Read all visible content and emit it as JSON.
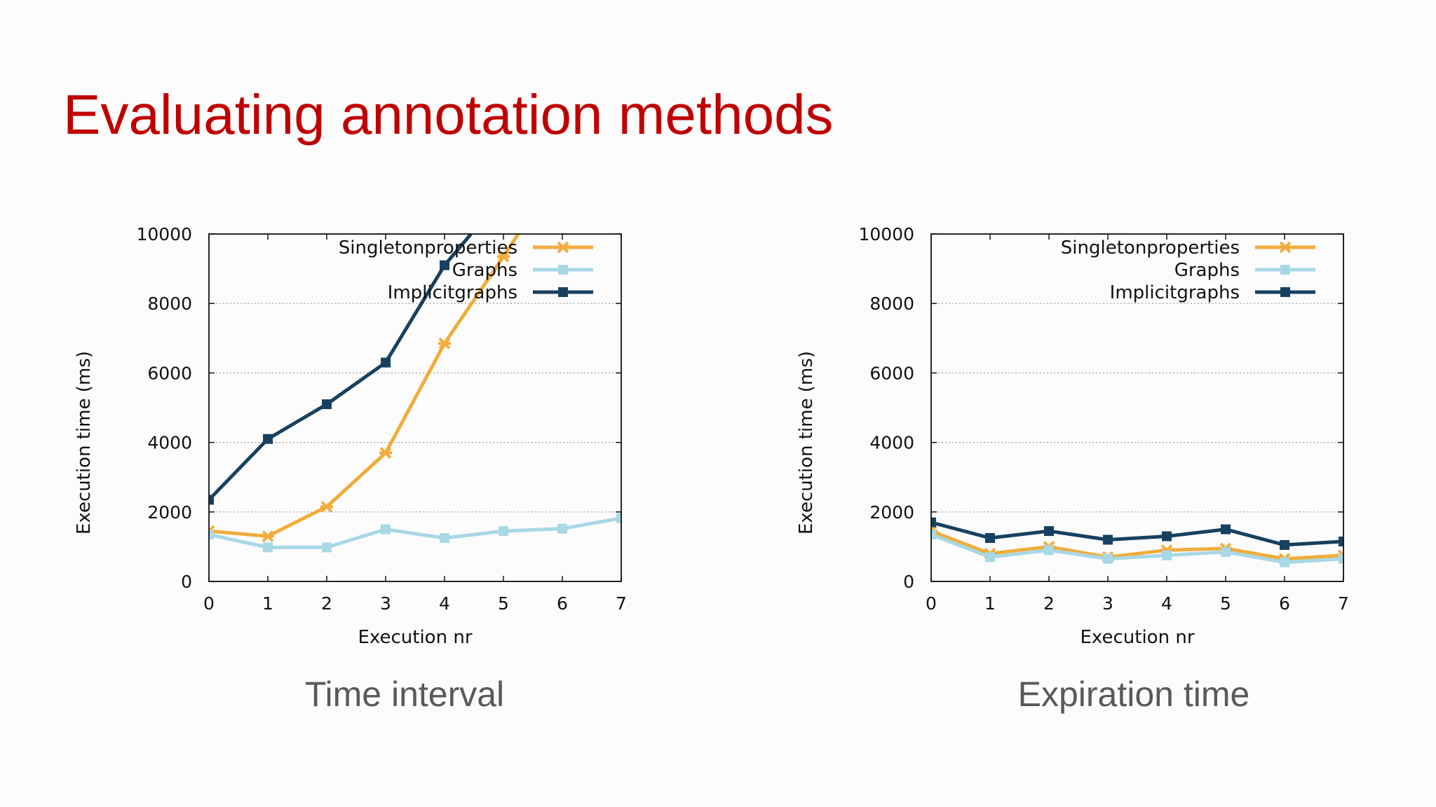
{
  "slide": {
    "title": "Evaluating annotation methods"
  },
  "chart_data": [
    {
      "type": "line",
      "caption": "Time interval",
      "xlabel": "Execution nr",
      "ylabel": "Execution time (ms)",
      "xlim": [
        0,
        7
      ],
      "ylim": [
        0,
        10000
      ],
      "xticks": [
        "0",
        "1",
        "2",
        "3",
        "4",
        "5",
        "6",
        "7"
      ],
      "yticks": [
        "0",
        "2000",
        "4000",
        "6000",
        "8000",
        "10000"
      ],
      "grid": "horizontal dotted",
      "legend_position": "top-right",
      "series": [
        {
          "name": "Singletonproperties",
          "color": "#f0ad3c",
          "marker": "star",
          "x": [
            0,
            1,
            2,
            3,
            4,
            5,
            5.25
          ],
          "y": [
            1450,
            1300,
            2150,
            3700,
            6850,
            9350,
            10000
          ]
        },
        {
          "name": "Graphs",
          "color": "#a8d8e6",
          "marker": "square",
          "x": [
            0,
            1,
            2,
            3,
            4,
            5,
            6,
            7
          ],
          "y": [
            1350,
            980,
            980,
            1500,
            1250,
            1450,
            1520,
            1820
          ]
        },
        {
          "name": "Implicitgraphs",
          "color": "#17415f",
          "marker": "square",
          "x": [
            0,
            1,
            2,
            3,
            4,
            4.45
          ],
          "y": [
            2350,
            4100,
            5100,
            6300,
            9100,
            10000
          ]
        }
      ]
    },
    {
      "type": "line",
      "caption": "Expiration time",
      "xlabel": "Execution nr",
      "ylabel": "Execution time (ms)",
      "xlim": [
        0,
        7
      ],
      "ylim": [
        0,
        10000
      ],
      "xticks": [
        "0",
        "1",
        "2",
        "3",
        "4",
        "5",
        "6",
        "7"
      ],
      "yticks": [
        "0",
        "2000",
        "4000",
        "6000",
        "8000",
        "10000"
      ],
      "grid": "horizontal dotted",
      "legend_position": "top-right",
      "series": [
        {
          "name": "Singletonproperties",
          "color": "#f0ad3c",
          "marker": "star",
          "x": [
            0,
            1,
            2,
            3,
            4,
            5,
            6,
            7
          ],
          "y": [
            1450,
            800,
            1000,
            700,
            900,
            950,
            650,
            750
          ]
        },
        {
          "name": "Graphs",
          "color": "#a8d8e6",
          "marker": "square",
          "x": [
            0,
            1,
            2,
            3,
            4,
            5,
            6,
            7
          ],
          "y": [
            1350,
            700,
            900,
            650,
            750,
            850,
            550,
            650
          ]
        },
        {
          "name": "Implicitgraphs",
          "color": "#17415f",
          "marker": "square",
          "x": [
            0,
            1,
            2,
            3,
            4,
            5,
            6,
            7
          ],
          "y": [
            1700,
            1250,
            1450,
            1200,
            1300,
            1500,
            1050,
            1150
          ]
        }
      ]
    }
  ]
}
